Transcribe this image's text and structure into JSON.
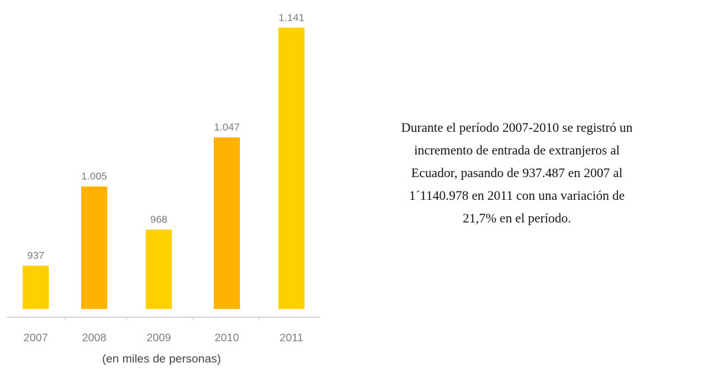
{
  "chart_data": {
    "type": "bar",
    "categories": [
      "2007",
      "2008",
      "2009",
      "2010",
      "2011"
    ],
    "values": [
      937,
      1005,
      968,
      1047,
      1141
    ],
    "value_labels": [
      "937",
      "1.005",
      "968",
      "1.047",
      "1.141"
    ],
    "colors": [
      "#ffd000",
      "#ffb300",
      "#ffd000",
      "#ffb300",
      "#ffd000"
    ],
    "ylim": [
      900,
      1150
    ],
    "x_label": "(en miles de personas)"
  },
  "text": [
    "Durante el período 2007-2010 se registró un",
    "incremento de entrada de extranjeros al",
    "Ecuador, pasando de 937.487 en 2007 al",
    "1´1140.978 en 2011 con una variación de",
    "21,7% en el período."
  ]
}
